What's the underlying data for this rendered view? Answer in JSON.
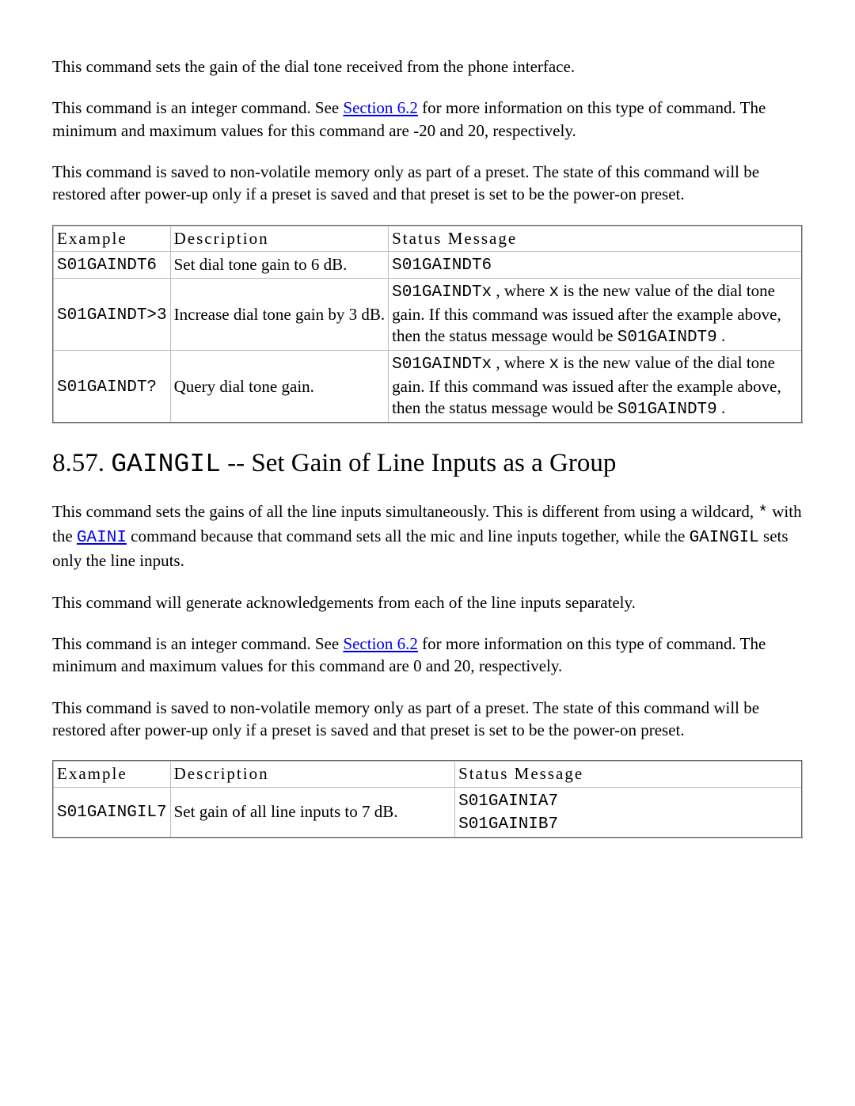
{
  "section1": {
    "p1": "This command sets the gain of the dial tone received from the phone interface.",
    "p2a": "This command is an integer command. See ",
    "p2_link": "Section 6.2",
    "p2b": " for more information on this type of command. The minimum and maximum values for this command are -20 and 20, respectively.",
    "p3": "This command is saved to non-volatile memory only as part of a preset. The state of this command will be restored after power-up only if a preset is saved and that preset is set to be the power-on preset."
  },
  "table1": {
    "headers": {
      "example": "Example",
      "description": "Description",
      "status": "Status Message"
    },
    "rows": [
      {
        "example": "S01GAINDT6",
        "description": "Set dial tone gain to 6 dB.",
        "status_code1": "S01GAINDT6",
        "status_text": "",
        "status_code2": ""
      },
      {
        "example": "S01GAINDT>3",
        "description": "Increase dial tone gain by 3 dB.",
        "status_code1": "S01GAINDTx",
        "status_var": "x",
        "status_text_a": " , where ",
        "status_text_b": " is the new value of the dial tone gain. If this command was issued after the example above, then the status message would be ",
        "status_code2": "S01GAINDT9",
        "status_text_c": " ."
      },
      {
        "example": "S01GAINDT?",
        "description": "Query dial tone gain.",
        "status_code1": "S01GAINDTx",
        "status_var": "x",
        "status_text_a": " , where ",
        "status_text_b": " is the new value of the dial tone gain. If this command was issued after the example above, then the status message would be ",
        "status_code2": "S01GAINDT9",
        "status_text_c": " ."
      }
    ]
  },
  "section2": {
    "heading_num": "8.57. ",
    "heading_cmd": "GAINGIL",
    "heading_rest": " -- Set Gain of Line Inputs as a Group",
    "p1a": "This command sets the gains of all the line inputs simultaneously. This is different from using a wildcard, ",
    "p1_code1": "*",
    "p1b": " with the ",
    "p1_link": "GAINI",
    "p1c": " command because that command sets all the mic and line inputs together, while the ",
    "p1_code2": "GAINGIL",
    "p1d": " sets only the line inputs.",
    "p2": "This command will generate acknowledgements from each of the line inputs separately.",
    "p3a": "This command is an integer command. See ",
    "p3_link": "Section 6.2",
    "p3b": " for more information on this type of command. The minimum and maximum values for this command are 0 and 20, respectively.",
    "p4": "This command is saved to non-volatile memory only as part of a preset. The state of this command will be restored after power-up only if a preset is saved and that preset is set to be the power-on preset."
  },
  "table2": {
    "headers": {
      "example": "Example",
      "description": "Description",
      "status": "Status Message"
    },
    "rows": [
      {
        "example": "S01GAINGIL7",
        "description": "Set gain of all line inputs to 7 dB.",
        "status_line1": "S01GAINIA7",
        "status_line2": "S01GAINIB7"
      }
    ]
  }
}
